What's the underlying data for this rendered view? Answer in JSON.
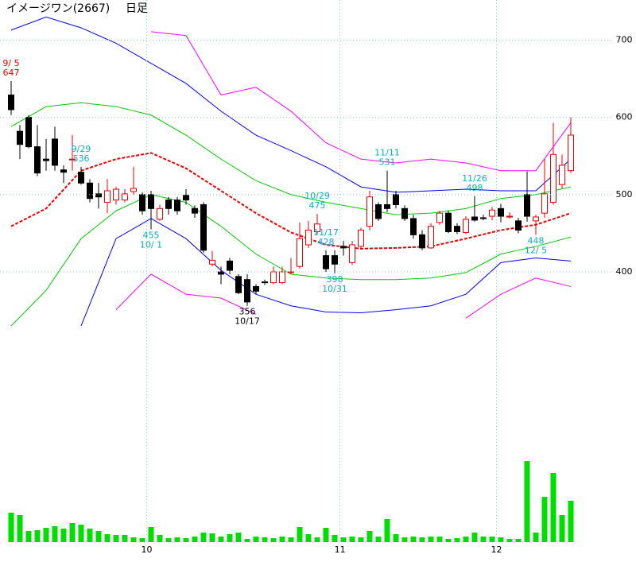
{
  "chart_data": {
    "type": "candlestick",
    "title": "イメージワン(2667)",
    "subtitle": "日足",
    "ylim": [
      330,
      752
    ],
    "yticks": [
      400,
      500,
      600,
      700
    ],
    "xlim": [
      -1,
      71
    ],
    "xticks": [
      {
        "value": 15.5,
        "label": "10"
      },
      {
        "value": 37.6,
        "label": "11"
      },
      {
        "value": 55.5,
        "label": "12"
      }
    ],
    "grid": true,
    "up_color": "#ee0000",
    "down_color": "#000000",
    "open": [
      629,
      582,
      600,
      562,
      546,
      572,
      532,
      545,
      529,
      515,
      501,
      490,
      493,
      493,
      504,
      500,
      500,
      468,
      493,
      493,
      499,
      482,
      487,
      410,
      400,
      414,
      394,
      390,
      381,
      387,
      386,
      386,
      399,
      407,
      435,
      452,
      421,
      421,
      433,
      412,
      433,
      459,
      487,
      487,
      500,
      482,
      469,
      448,
      431,
      464,
      476,
      459,
      451,
      471,
      470,
      472,
      482,
      471,
      466,
      500,
      466,
      476,
      490,
      513,
      531
    ],
    "high": [
      647,
      590,
      603,
      590,
      572,
      588,
      538,
      577,
      536,
      520,
      515,
      520,
      510,
      507,
      536,
      503,
      505,
      487,
      497,
      497,
      507,
      486,
      490,
      427,
      407,
      418,
      397,
      397,
      384,
      390,
      407,
      407,
      418,
      464,
      466,
      475,
      428,
      428,
      440,
      440,
      457,
      505,
      490,
      531,
      505,
      486,
      474,
      454,
      463,
      479,
      479,
      463,
      472,
      498,
      474,
      484,
      488,
      477,
      470,
      530,
      474,
      546,
      593,
      552,
      600
    ],
    "low": [
      603,
      546,
      560,
      524,
      531,
      531,
      515,
      531,
      513,
      490,
      482,
      476,
      487,
      490,
      500,
      474,
      455,
      466,
      474,
      474,
      487,
      470,
      425,
      407,
      384,
      397,
      371,
      356,
      371,
      383,
      384,
      384,
      397,
      404,
      431,
      449,
      400,
      398,
      421,
      409,
      429,
      454,
      466,
      477,
      482,
      466,
      443,
      428,
      430,
      461,
      450,
      449,
      449,
      465,
      467,
      467,
      464,
      469,
      450,
      465,
      448,
      470,
      487,
      508,
      528
    ],
    "close": [
      610,
      565,
      562,
      528,
      544,
      538,
      529,
      546,
      515,
      495,
      497,
      505,
      507,
      501,
      508,
      479,
      482,
      482,
      482,
      479,
      493,
      476,
      428,
      415,
      397,
      402,
      373,
      361,
      375,
      386,
      400,
      400,
      400,
      443,
      454,
      462,
      404,
      410,
      431,
      435,
      454,
      497,
      469,
      482,
      487,
      469,
      448,
      431,
      459,
      476,
      452,
      452,
      468,
      467,
      469,
      480,
      472,
      472,
      454,
      472,
      471,
      501,
      552,
      538,
      577
    ],
    "volume": [
      37,
      34,
      14,
      15,
      18,
      20,
      17,
      24,
      22,
      17,
      14,
      10,
      9,
      9,
      6,
      5,
      19,
      9,
      5,
      6,
      5,
      7,
      12,
      11,
      7,
      10,
      12,
      4,
      7,
      6,
      5,
      7,
      6,
      19,
      10,
      6,
      18,
      9,
      6,
      7,
      6,
      14,
      7,
      29,
      10,
      6,
      7,
      6,
      7,
      7,
      4,
      5,
      7,
      12,
      7,
      7,
      6,
      4,
      4,
      102,
      12,
      57,
      87,
      34,
      52
    ],
    "volume_lim": [
      0,
      110
    ],
    "volume_color": "#00dd00",
    "band_x": [
      0,
      4,
      8,
      12,
      16,
      20,
      24,
      28,
      32,
      36,
      40,
      44,
      48,
      52,
      56,
      60,
      64
    ],
    "bands": [
      {
        "color": "#ff00ff",
        "dashed": false,
        "values": [
          null,
          null,
          null,
          null,
          711,
          706,
          629,
          639,
          608,
          567,
          546,
          541,
          546,
          541,
          531,
          531,
          593
        ]
      },
      {
        "color": "#0000ff",
        "dashed": false,
        "values": [
          713,
          730,
          716,
          696,
          670,
          644,
          608,
          577,
          557,
          536,
          510,
          503,
          505,
          507,
          505,
          505,
          546
        ]
      },
      {
        "color": "#00cc00",
        "dashed": false,
        "values": [
          588,
          614,
          619,
          614,
          603,
          577,
          546,
          518,
          500,
          490,
          482,
          474,
          476,
          482,
          495,
          500,
          510
        ]
      },
      {
        "color": "#ee0000",
        "dashed": true,
        "values": [
          459,
          482,
          531,
          546,
          554,
          534,
          505,
          476,
          451,
          435,
          430,
          431,
          433,
          443,
          454,
          461,
          476
        ]
      },
      {
        "color": "#00cc00",
        "dashed": false,
        "values": [
          330,
          376,
          443,
          479,
          500,
          490,
          459,
          423,
          397,
          392,
          390,
          390,
          392,
          399,
          423,
          433,
          445
        ]
      },
      {
        "color": "#0000ff",
        "dashed": false,
        "values": [
          null,
          null,
          330,
          443,
          469,
          443,
          402,
          371,
          356,
          348,
          347,
          351,
          356,
          371,
          412,
          418,
          414
        ]
      },
      {
        "color": "#ff00ff",
        "dashed": false,
        "values": [
          null,
          null,
          null,
          351,
          397,
          371,
          366,
          345,
          null,
          null,
          null,
          null,
          null,
          340,
          371,
          392,
          381
        ]
      }
    ],
    "annotations": [
      {
        "date": "9/ 5",
        "value": 647,
        "color": "#ee0000"
      },
      {
        "date": "9/29",
        "value": 536,
        "color": "#00b0c8"
      },
      {
        "date": "10/ 1",
        "value": 455,
        "color": "#00b0c8"
      },
      {
        "date": "10/17",
        "value": 356,
        "color": "#000000"
      },
      {
        "date": "10/29",
        "value": 475,
        "color": "#00b0c8"
      },
      {
        "date": "10/31",
        "value": 398,
        "color": "#00b0c8"
      },
      {
        "date": "11/11",
        "value": 531,
        "color": "#00b0c8"
      },
      {
        "date": "11/17",
        "value": 428,
        "color": "#00b0c8"
      },
      {
        "date": "11/26",
        "value": 498,
        "color": "#00b0c8"
      },
      {
        "date": "12/ 5",
        "value": 448,
        "color": "#00b0c8"
      }
    ]
  }
}
